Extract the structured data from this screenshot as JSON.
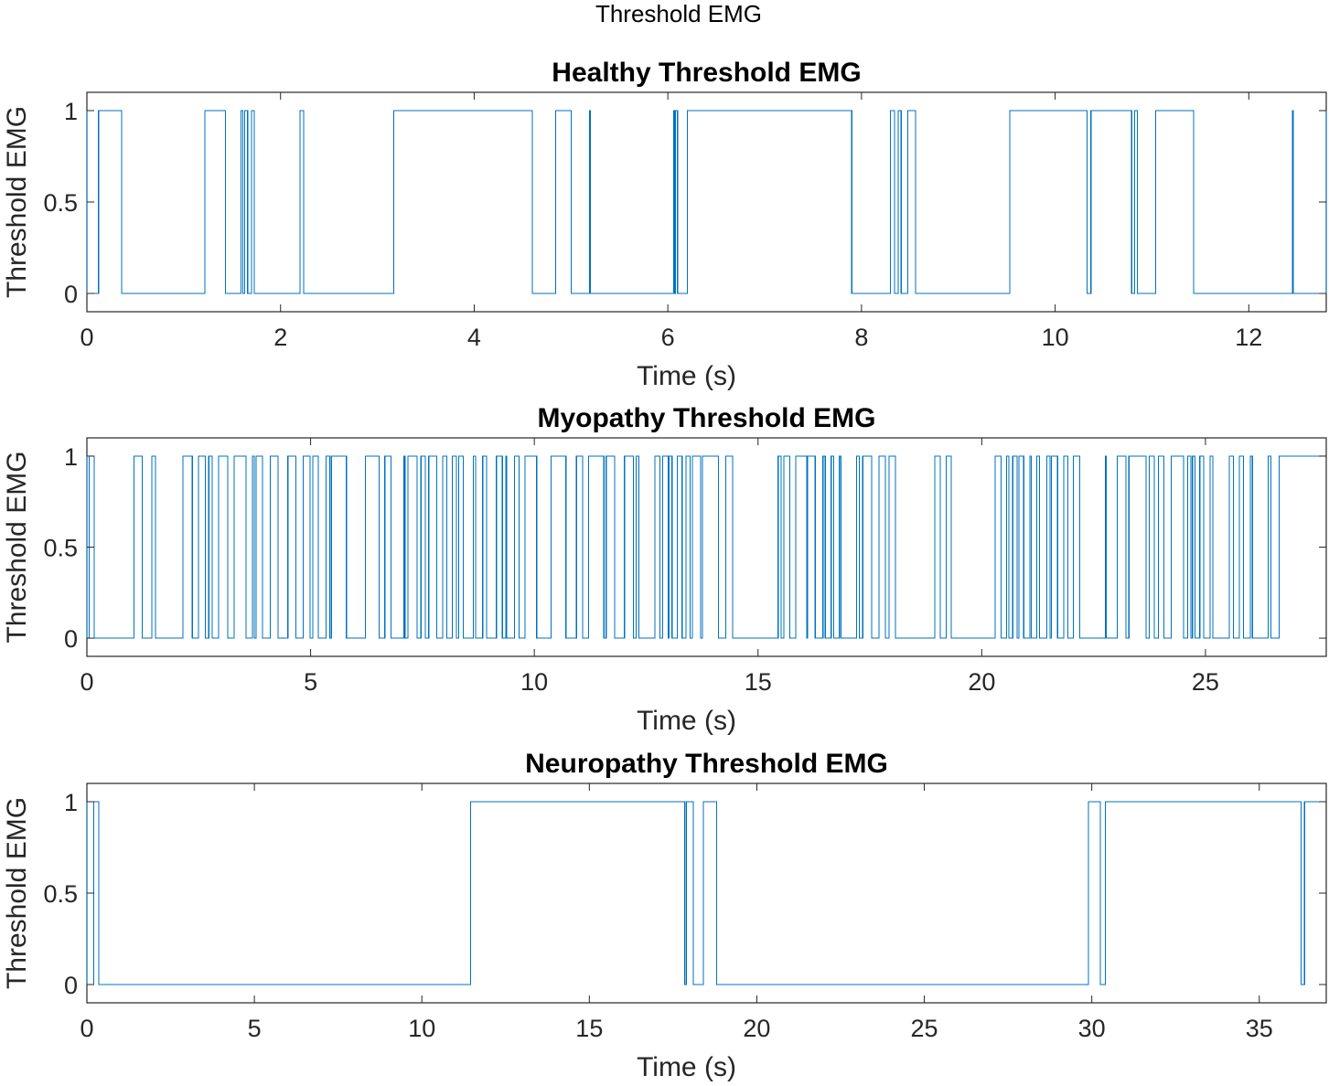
{
  "figure": {
    "title": "Threshold EMG"
  },
  "colors": {
    "series": "#0072BD",
    "axes": "#262626",
    "background": "#ffffff"
  },
  "chart_data": [
    {
      "type": "line",
      "title": "Healthy Threshold EMG",
      "xlabel": "Time (s)",
      "ylabel": "Threshold EMG",
      "xlim": [
        0,
        12.8
      ],
      "ylim": [
        -0.1,
        1.1
      ],
      "xticks": [
        0,
        2,
        4,
        6,
        8,
        10,
        12
      ],
      "yticks": [
        0,
        0.5,
        1
      ],
      "grid": false,
      "series": [
        {
          "segments": [
            [
              0.0,
              0.12
            ],
            [
              0.36,
              1.22
            ],
            [
              1.43,
              1.59
            ],
            [
              1.61,
              1.63
            ],
            [
              1.66,
              1.7
            ],
            [
              1.73,
              2.2
            ],
            [
              2.24,
              3.17
            ],
            [
              4.6,
              4.84
            ],
            [
              5.0,
              5.19
            ],
            [
              5.2,
              6.06
            ],
            [
              6.07,
              6.08
            ],
            [
              6.1,
              6.2
            ],
            [
              7.9,
              8.3
            ],
            [
              8.34,
              8.38
            ],
            [
              8.41,
              8.48
            ],
            [
              8.56,
              9.53
            ],
            [
              10.33,
              10.37
            ],
            [
              10.79,
              10.82
            ],
            [
              10.85,
              11.04
            ],
            [
              11.43,
              12.45
            ],
            [
              12.46,
              12.8
            ]
          ]
        }
      ]
    },
    {
      "type": "line",
      "title": "Myopathy Threshold EMG",
      "xlabel": "Time (s)",
      "ylabel": "Threshold EMG",
      "xlim": [
        0,
        27.7
      ],
      "ylim": [
        -0.1,
        1.1
      ],
      "xticks": [
        0,
        5,
        10,
        15,
        20,
        25
      ],
      "yticks": [
        0,
        0.5,
        1
      ],
      "grid": false,
      "series": [
        {
          "segments": [
            [
              0.0,
              0.05
            ],
            [
              0.14,
              0.15
            ],
            [
              0.16,
              1.05
            ],
            [
              1.35,
              1.45
            ],
            [
              1.55,
              2.15
            ],
            [
              14.45,
              15.45
            ],
            [
              16.85,
              17.2
            ],
            [
              17.35,
              17.45
            ],
            [
              18.15,
              18.95
            ],
            [
              19.35,
              20.3
            ],
            [
              26.55,
              26.65
            ]
          ]
        }
      ]
    },
    {
      "type": "line",
      "title": "Neuropathy Threshold EMG",
      "xlabel": "Time (s)",
      "ylabel": "Threshold EMG",
      "xlim": [
        0,
        37
      ],
      "ylim": [
        -0.1,
        1.1
      ],
      "xticks": [
        0,
        5,
        10,
        15,
        20,
        25,
        30,
        35
      ],
      "yticks": [
        0,
        0.5,
        1
      ],
      "grid": false,
      "series": [
        {
          "segments": [
            [
              0.0,
              0.2
            ],
            [
              0.35,
              11.45
            ],
            [
              17.85,
              17.9
            ],
            [
              18.1,
              18.4
            ],
            [
              18.8,
              29.9
            ],
            [
              30.25,
              30.4
            ],
            [
              36.25,
              36.35
            ]
          ]
        }
      ]
    }
  ]
}
